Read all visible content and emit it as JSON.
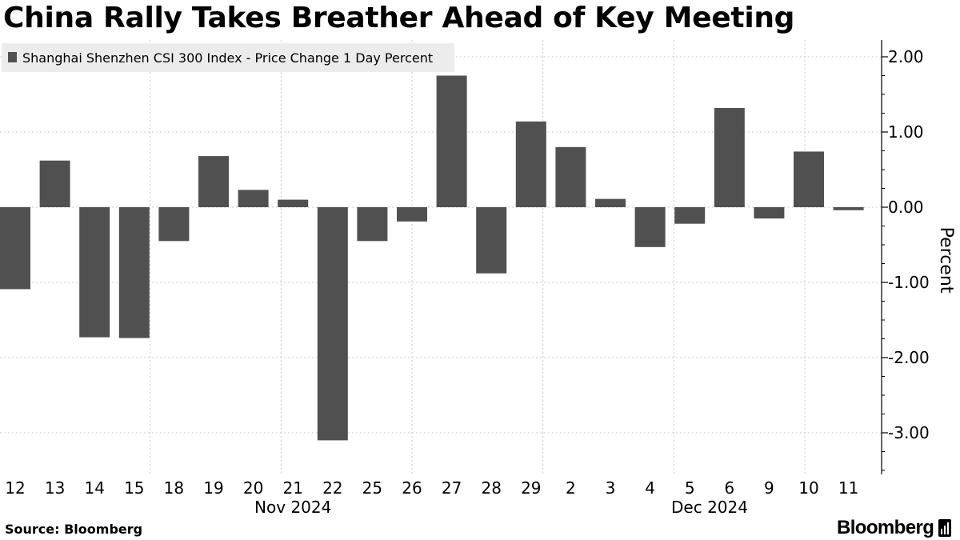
{
  "title": "China Rally Takes Breather Ahead of Key Meeting",
  "source": "Source: Bloomberg",
  "brand": "Bloomberg",
  "colors": {
    "bar": "#505050",
    "grid": "#c8c8c8",
    "text": "#000000",
    "legend_bg": "#ececec"
  },
  "chart_data": {
    "type": "bar",
    "title": "China Rally Takes Breather Ahead of Key Meeting",
    "legend": [
      "Shanghai Shenzhen CSI 300 Index - Price Change 1 Day Percent"
    ],
    "legend_position": "top-left",
    "xlabel": "",
    "ylabel": "Percent",
    "y_axis_side": "right",
    "ylim": [
      -3.5,
      2.2
    ],
    "yticks": [
      2.0,
      1.0,
      0.0,
      -1.0,
      -2.0,
      -3.0
    ],
    "ytick_labels": [
      "2.00",
      "1.00",
      "0.00",
      "-1.00",
      "-2.00",
      "-3.00"
    ],
    "grid": true,
    "categories": [
      "12",
      "13",
      "14",
      "15",
      "18",
      "19",
      "20",
      "21",
      "22",
      "25",
      "26",
      "27",
      "28",
      "29",
      "2",
      "3",
      "4",
      "5",
      "6",
      "9",
      "10",
      "11"
    ],
    "month_labels": [
      {
        "label": "Nov 2024",
        "center_index": 7
      },
      {
        "label": "Dec 2024",
        "center_index": 17.5
      }
    ],
    "series": [
      {
        "name": "Shanghai Shenzhen CSI 300 Index - Price Change 1 Day Percent",
        "values": [
          -1.09,
          0.62,
          -1.73,
          -1.74,
          -0.45,
          0.68,
          0.23,
          0.1,
          -3.1,
          -0.45,
          -0.19,
          1.75,
          -0.88,
          1.14,
          0.8,
          0.11,
          -0.53,
          -0.22,
          1.32,
          -0.15,
          0.74,
          -0.04
        ]
      }
    ]
  }
}
